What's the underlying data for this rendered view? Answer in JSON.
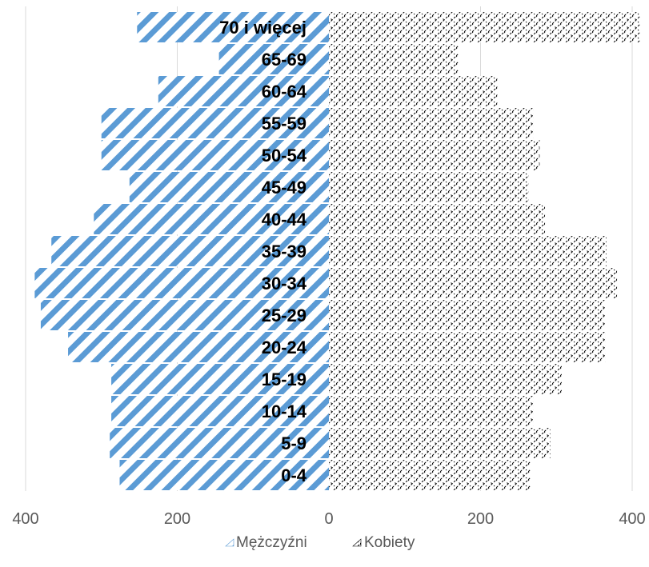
{
  "chart_data": {
    "type": "bar",
    "orientation": "horizontal",
    "style": "population-pyramid",
    "categories": [
      "0-4",
      "5-9",
      "10-14",
      "15-19",
      "20-24",
      "25-29",
      "30-34",
      "35-39",
      "40-44",
      "45-49",
      "50-54",
      "55-59",
      "60-64",
      "65-69",
      "70 i więcej"
    ],
    "series": [
      {
        "name": "Mężczyźni",
        "side": "left",
        "color": "#5B9BD5",
        "pattern": "diagonal-stripes",
        "values": [
          276,
          289,
          287,
          287,
          344,
          380,
          388,
          366,
          310,
          263,
          300,
          300,
          225,
          145,
          253
        ]
      },
      {
        "name": "Kobiety",
        "side": "right",
        "color": "#000000",
        "pattern": "crosshatch",
        "values": [
          266,
          292,
          270,
          307,
          365,
          364,
          380,
          366,
          285,
          263,
          278,
          270,
          222,
          171,
          410
        ]
      }
    ],
    "x_ticks": [
      "400",
      "200",
      "0",
      "200",
      "400"
    ],
    "xlim": [
      -400,
      400
    ],
    "grid": "vertical",
    "legend": "bottom"
  }
}
